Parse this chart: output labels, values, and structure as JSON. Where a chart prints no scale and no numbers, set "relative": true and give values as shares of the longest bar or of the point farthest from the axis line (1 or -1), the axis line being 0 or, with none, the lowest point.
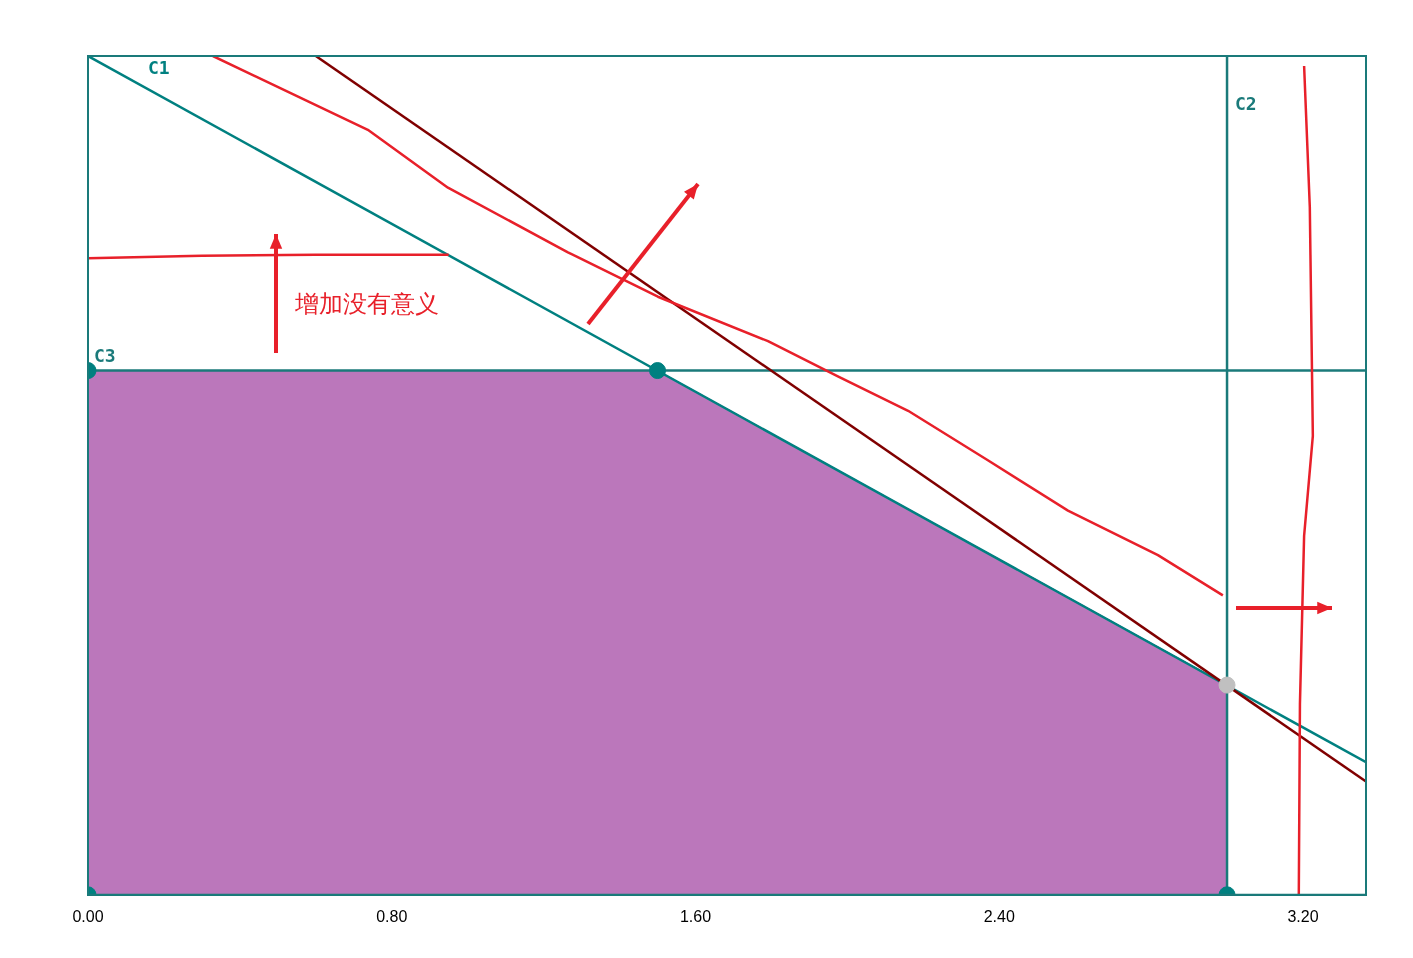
{
  "chart_data": {
    "type": "line",
    "relative": true,
    "xlim": [
      0,
      3.366
    ],
    "xticks": [
      {
        "value": 0,
        "label": "0.00"
      },
      {
        "value": 0.8,
        "label": "0.80"
      },
      {
        "value": 1.6,
        "label": "1.60"
      },
      {
        "value": 2.4,
        "label": "2.40"
      },
      {
        "value": 3.2,
        "label": "3.20"
      }
    ],
    "series": [
      {
        "type": "area",
        "color": "#800080",
        "x": [
          0,
          1.5,
          3,
          3
        ],
        "values": [
          0.625,
          0.625,
          0.25,
          0
        ]
      },
      {
        "name": "C1",
        "type": "line",
        "color": "#008080",
        "x": [
          0,
          3.366
        ],
        "values": [
          1,
          0.158
        ]
      },
      {
        "name": "C2",
        "type": "line",
        "color": "#1a7a7a",
        "x": [
          3,
          3
        ],
        "values": [
          1,
          0
        ]
      },
      {
        "name": "C3",
        "type": "line",
        "color": "#1a7a7a",
        "x": [
          0,
          3.366
        ],
        "values": [
          0.625,
          0.625
        ]
      },
      {
        "type": "line",
        "color": "#800000",
        "x": [
          0.6,
          3.366
        ],
        "values": [
          1,
          0.135
        ]
      },
      {
        "type": "line",
        "color": "#e8202a",
        "x": [
          0,
          0.3,
          0.6,
          0.95
        ],
        "values": [
          0.759,
          0.762,
          0.763,
          0.763
        ]
      },
      {
        "type": "line",
        "color": "#e8202a",
        "x": [
          0.329,
          0.737,
          0.948,
          1.264,
          1.501,
          1.791,
          1.975,
          2.16,
          2.37,
          2.581,
          2.818,
          2.989
        ],
        "values": [
          1,
          0.912,
          0.843,
          0.766,
          0.713,
          0.66,
          0.618,
          0.577,
          0.518,
          0.458,
          0.405,
          0.357
        ]
      },
      {
        "type": "line",
        "color": "#e8202a",
        "x": [
          3.203,
          3.218,
          3.226,
          3.203,
          3.192,
          3.189
        ],
        "values": [
          0.988,
          0.82,
          0.547,
          0.428,
          0.227,
          0.001
        ]
      },
      {
        "type": "scatter",
        "marker": "circle",
        "colors": [
          "#008080",
          "#008080",
          "#008080",
          "#008080",
          "#c0c0c0"
        ],
        "x": [
          0,
          1.5,
          0,
          3,
          3
        ],
        "values": [
          0.625,
          0.625,
          0,
          0,
          0.25
        ]
      }
    ],
    "annotations": [
      "增加没有意义"
    ],
    "grid": false,
    "legend": false,
    "marker": "none"
  }
}
